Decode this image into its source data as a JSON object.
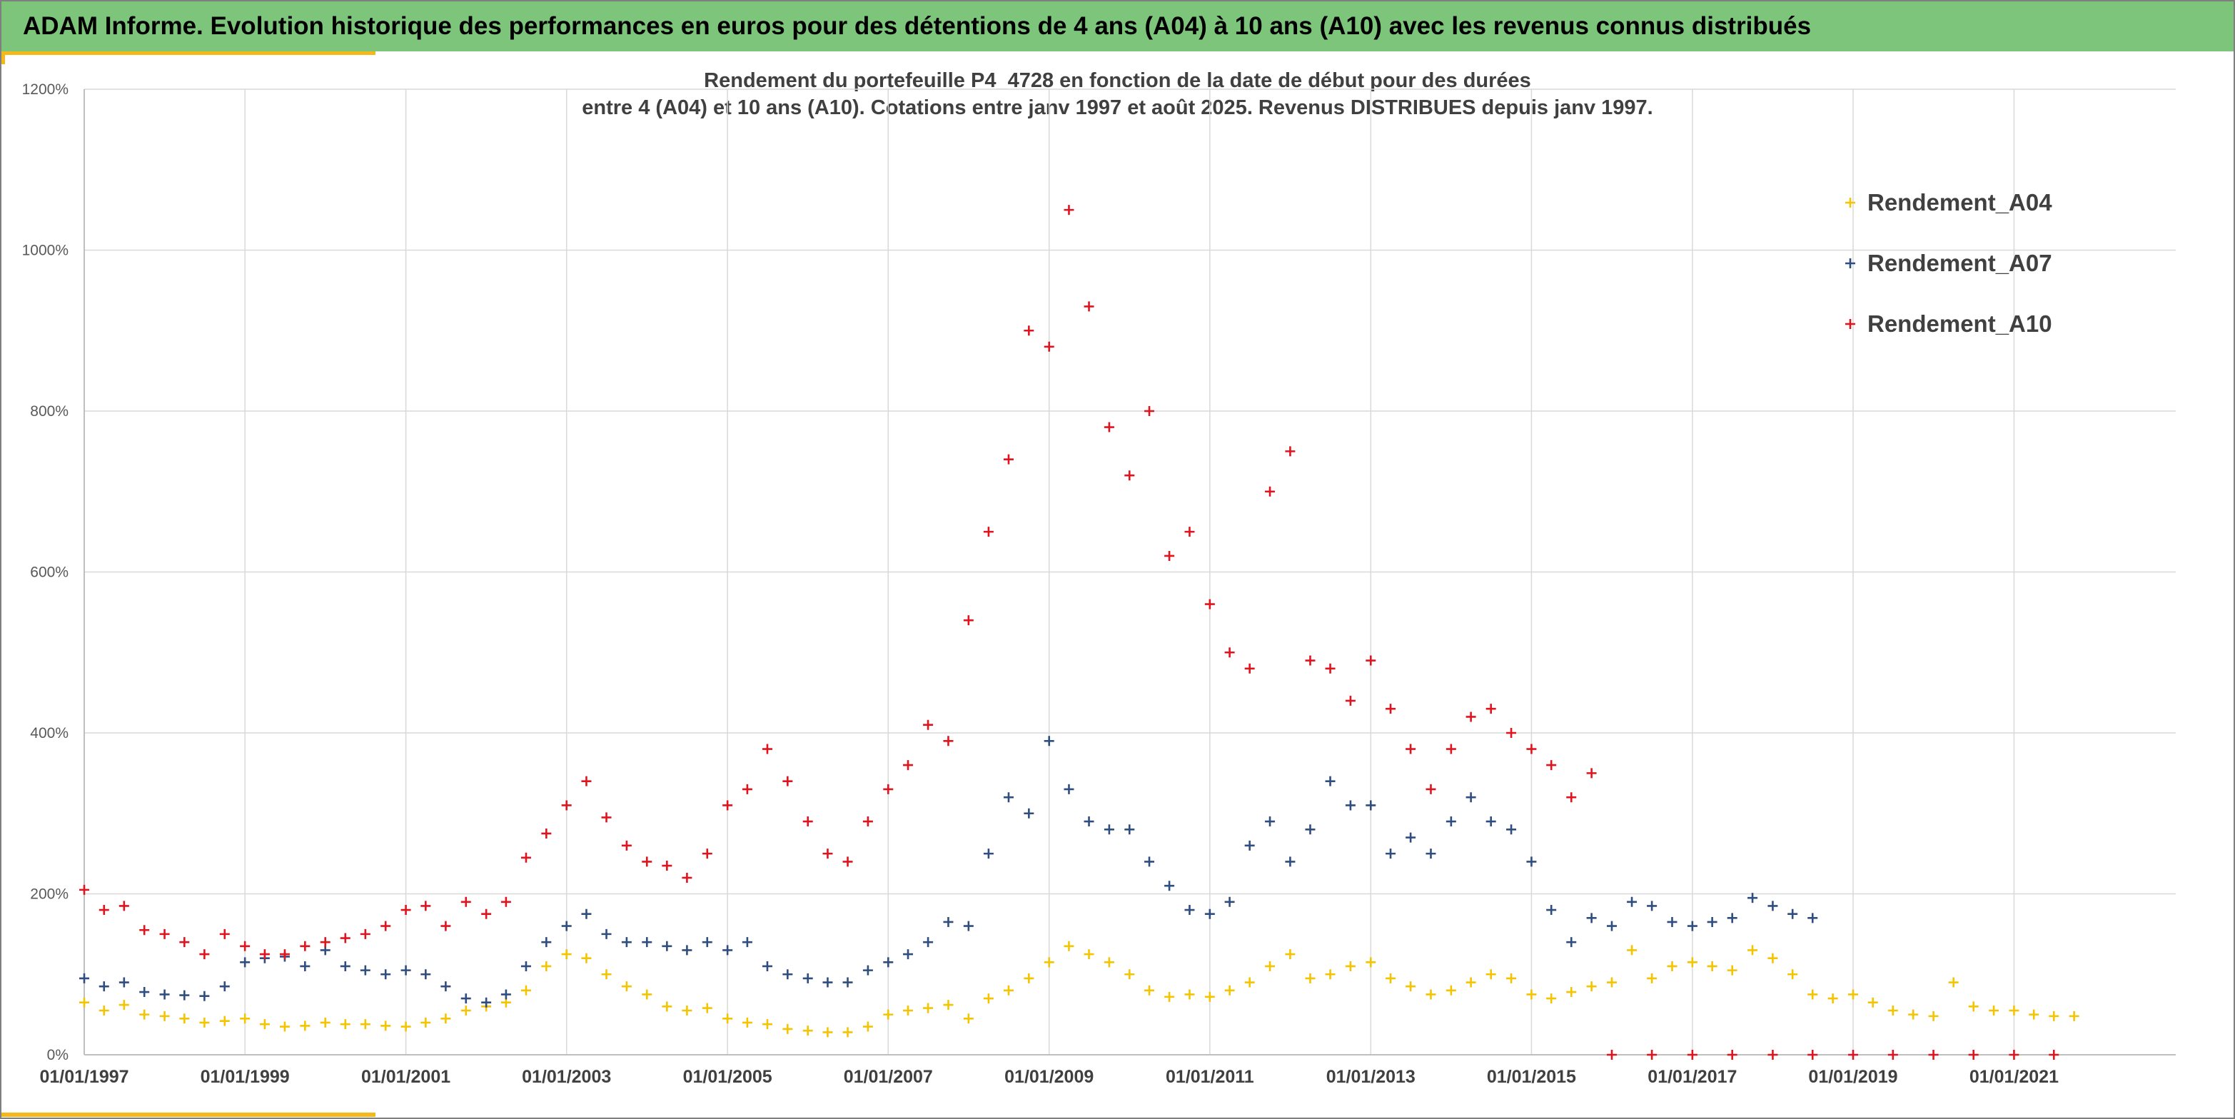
{
  "banner": {
    "title": "ADAM Informe. Evolution historique des performances en euros pour des détentions de 4 ans (A04) à 10 ans (A10) avec les revenus connus distribués"
  },
  "colors": {
    "banner": "#7dc57a",
    "accent": "#f4b81a",
    "a04": "#f5c400",
    "a07": "#2f4d7f",
    "a10": "#e0141e",
    "grid": "#d9d9d9"
  },
  "chart_data": {
    "type": "scatter",
    "title_line1": "Rendement du portefeuille P4_4728 en fonction de la date de début pour des durées",
    "title_line2": "entre 4 (A04) et 10 ans (A10). Cotations entre janv 1997 et août 2025. Revenus DISTRIBUES depuis janv 1997.",
    "marker": "+",
    "x_range": [
      "1997-01-01",
      "2022-01-01"
    ],
    "x_ticks": [
      "01/01/1997",
      "01/01/1999",
      "01/01/2001",
      "01/01/2003",
      "01/01/2005",
      "01/01/2007",
      "01/01/2009",
      "01/01/2011",
      "01/01/2013",
      "01/01/2015",
      "01/01/2017",
      "01/01/2019",
      "01/01/2021"
    ],
    "y_range": [
      0,
      1200
    ],
    "y_ticks": [
      "0%",
      "200%",
      "400%",
      "600%",
      "800%",
      "1000%",
      "1200%"
    ],
    "grid": true,
    "legend_position": "top-right",
    "series": [
      {
        "name": "Rendement_A04",
        "color": "#f5c400",
        "points": [
          [
            "1997-01-01",
            65
          ],
          [
            "1997-04-01",
            55
          ],
          [
            "1997-07-01",
            62
          ],
          [
            "1997-10-01",
            50
          ],
          [
            "1998-01-01",
            48
          ],
          [
            "1998-04-01",
            45
          ],
          [
            "1998-07-01",
            40
          ],
          [
            "1998-10-01",
            42
          ],
          [
            "1999-01-01",
            45
          ],
          [
            "1999-04-01",
            38
          ],
          [
            "1999-07-01",
            35
          ],
          [
            "1999-10-01",
            36
          ],
          [
            "2000-01-01",
            40
          ],
          [
            "2000-04-01",
            38
          ],
          [
            "2000-07-01",
            38
          ],
          [
            "2000-10-01",
            36
          ],
          [
            "2001-01-01",
            35
          ],
          [
            "2001-04-01",
            40
          ],
          [
            "2001-07-01",
            45
          ],
          [
            "2001-10-01",
            55
          ],
          [
            "2002-01-01",
            60
          ],
          [
            "2002-04-01",
            65
          ],
          [
            "2002-07-01",
            80
          ],
          [
            "2002-10-01",
            110
          ],
          [
            "2003-01-01",
            125
          ],
          [
            "2003-04-01",
            120
          ],
          [
            "2003-07-01",
            100
          ],
          [
            "2003-10-01",
            85
          ],
          [
            "2004-01-01",
            75
          ],
          [
            "2004-04-01",
            60
          ],
          [
            "2004-07-01",
            55
          ],
          [
            "2004-10-01",
            58
          ],
          [
            "2005-01-01",
            45
          ],
          [
            "2005-04-01",
            40
          ],
          [
            "2005-07-01",
            38
          ],
          [
            "2005-10-01",
            32
          ],
          [
            "2006-01-01",
            30
          ],
          [
            "2006-04-01",
            28
          ],
          [
            "2006-07-01",
            28
          ],
          [
            "2006-10-01",
            35
          ],
          [
            "2007-01-01",
            50
          ],
          [
            "2007-04-01",
            55
          ],
          [
            "2007-07-01",
            58
          ],
          [
            "2007-10-01",
            62
          ],
          [
            "2008-01-01",
            45
          ],
          [
            "2008-04-01",
            70
          ],
          [
            "2008-07-01",
            80
          ],
          [
            "2008-10-01",
            95
          ],
          [
            "2009-01-01",
            115
          ],
          [
            "2009-04-01",
            135
          ],
          [
            "2009-07-01",
            125
          ],
          [
            "2009-10-01",
            115
          ],
          [
            "2010-01-01",
            100
          ],
          [
            "2010-04-01",
            80
          ],
          [
            "2010-07-01",
            72
          ],
          [
            "2010-10-01",
            75
          ],
          [
            "2011-01-01",
            72
          ],
          [
            "2011-04-01",
            80
          ],
          [
            "2011-07-01",
            90
          ],
          [
            "2011-10-01",
            110
          ],
          [
            "2012-01-01",
            125
          ],
          [
            "2012-04-01",
            95
          ],
          [
            "2012-07-01",
            100
          ],
          [
            "2012-10-01",
            110
          ],
          [
            "2013-01-01",
            115
          ],
          [
            "2013-04-01",
            95
          ],
          [
            "2013-07-01",
            85
          ],
          [
            "2013-10-01",
            75
          ],
          [
            "2014-01-01",
            80
          ],
          [
            "2014-04-01",
            90
          ],
          [
            "2014-07-01",
            100
          ],
          [
            "2014-10-01",
            95
          ],
          [
            "2015-01-01",
            75
          ],
          [
            "2015-04-01",
            70
          ],
          [
            "2015-07-01",
            78
          ],
          [
            "2015-10-01",
            85
          ],
          [
            "2016-01-01",
            90
          ],
          [
            "2016-04-01",
            130
          ],
          [
            "2016-07-01",
            95
          ],
          [
            "2016-10-01",
            110
          ],
          [
            "2017-01-01",
            115
          ],
          [
            "2017-04-01",
            110
          ],
          [
            "2017-07-01",
            105
          ],
          [
            "2017-10-01",
            130
          ],
          [
            "2018-01-01",
            120
          ],
          [
            "2018-04-01",
            100
          ],
          [
            "2018-07-01",
            75
          ],
          [
            "2018-10-01",
            70
          ],
          [
            "2019-01-01",
            75
          ],
          [
            "2019-04-01",
            65
          ],
          [
            "2019-07-01",
            55
          ],
          [
            "2019-10-01",
            50
          ],
          [
            "2020-01-01",
            48
          ],
          [
            "2020-04-01",
            90
          ],
          [
            "2020-07-01",
            60
          ],
          [
            "2020-10-01",
            55
          ],
          [
            "2021-01-01",
            55
          ],
          [
            "2021-04-01",
            50
          ],
          [
            "2021-07-01",
            48
          ],
          [
            "2021-10-01",
            48
          ]
        ]
      },
      {
        "name": "Rendement_A07",
        "color": "#2f4d7f",
        "points": [
          [
            "1997-01-01",
            95
          ],
          [
            "1997-04-01",
            85
          ],
          [
            "1997-07-01",
            90
          ],
          [
            "1997-10-01",
            78
          ],
          [
            "1998-01-01",
            75
          ],
          [
            "1998-04-01",
            74
          ],
          [
            "1998-07-01",
            73
          ],
          [
            "1998-10-01",
            85
          ],
          [
            "1999-01-01",
            115
          ],
          [
            "1999-04-01",
            120
          ],
          [
            "1999-07-01",
            122
          ],
          [
            "1999-10-01",
            110
          ],
          [
            "2000-01-01",
            130
          ],
          [
            "2000-04-01",
            110
          ],
          [
            "2000-07-01",
            105
          ],
          [
            "2000-10-01",
            100
          ],
          [
            "2001-01-01",
            105
          ],
          [
            "2001-04-01",
            100
          ],
          [
            "2001-07-01",
            85
          ],
          [
            "2001-10-01",
            70
          ],
          [
            "2002-01-01",
            65
          ],
          [
            "2002-04-01",
            75
          ],
          [
            "2002-07-01",
            110
          ],
          [
            "2002-10-01",
            140
          ],
          [
            "2003-01-01",
            160
          ],
          [
            "2003-04-01",
            175
          ],
          [
            "2003-07-01",
            150
          ],
          [
            "2003-10-01",
            140
          ],
          [
            "2004-01-01",
            140
          ],
          [
            "2004-04-01",
            135
          ],
          [
            "2004-07-01",
            130
          ],
          [
            "2004-10-01",
            140
          ],
          [
            "2005-01-01",
            130
          ],
          [
            "2005-04-01",
            140
          ],
          [
            "2005-07-01",
            110
          ],
          [
            "2005-10-01",
            100
          ],
          [
            "2006-01-01",
            95
          ],
          [
            "2006-04-01",
            90
          ],
          [
            "2006-07-01",
            90
          ],
          [
            "2006-10-01",
            105
          ],
          [
            "2007-01-01",
            115
          ],
          [
            "2007-04-01",
            125
          ],
          [
            "2007-07-01",
            140
          ],
          [
            "2007-10-01",
            165
          ],
          [
            "2008-01-01",
            160
          ],
          [
            "2008-04-01",
            250
          ],
          [
            "2008-07-01",
            320
          ],
          [
            "2008-10-01",
            300
          ],
          [
            "2009-01-01",
            390
          ],
          [
            "2009-04-01",
            330
          ],
          [
            "2009-07-01",
            290
          ],
          [
            "2009-10-01",
            280
          ],
          [
            "2010-01-01",
            280
          ],
          [
            "2010-04-01",
            240
          ],
          [
            "2010-07-01",
            210
          ],
          [
            "2010-10-01",
            180
          ],
          [
            "2011-01-01",
            175
          ],
          [
            "2011-04-01",
            190
          ],
          [
            "2011-07-01",
            260
          ],
          [
            "2011-10-01",
            290
          ],
          [
            "2012-01-01",
            240
          ],
          [
            "2012-04-01",
            280
          ],
          [
            "2012-07-01",
            340
          ],
          [
            "2012-10-01",
            310
          ],
          [
            "2013-01-01",
            310
          ],
          [
            "2013-04-01",
            250
          ],
          [
            "2013-07-01",
            270
          ],
          [
            "2013-10-01",
            250
          ],
          [
            "2014-01-01",
            290
          ],
          [
            "2014-04-01",
            320
          ],
          [
            "2014-07-01",
            290
          ],
          [
            "2014-10-01",
            280
          ],
          [
            "2015-01-01",
            240
          ],
          [
            "2015-04-01",
            180
          ],
          [
            "2015-07-01",
            140
          ],
          [
            "2015-10-01",
            170
          ],
          [
            "2016-01-01",
            160
          ],
          [
            "2016-04-01",
            190
          ],
          [
            "2016-07-01",
            185
          ],
          [
            "2016-10-01",
            165
          ],
          [
            "2017-01-01",
            160
          ],
          [
            "2017-04-01",
            165
          ],
          [
            "2017-07-01",
            170
          ],
          [
            "2017-10-01",
            195
          ],
          [
            "2018-01-01",
            185
          ],
          [
            "2018-04-01",
            175
          ],
          [
            "2018-07-01",
            170
          ]
        ]
      },
      {
        "name": "Rendement_A10",
        "color": "#e0141e",
        "points": [
          [
            "1997-01-01",
            205
          ],
          [
            "1997-04-01",
            180
          ],
          [
            "1997-07-01",
            185
          ],
          [
            "1997-10-01",
            155
          ],
          [
            "1998-01-01",
            150
          ],
          [
            "1998-04-01",
            140
          ],
          [
            "1998-07-01",
            125
          ],
          [
            "1998-10-01",
            150
          ],
          [
            "1999-01-01",
            135
          ],
          [
            "1999-04-01",
            125
          ],
          [
            "1999-07-01",
            125
          ],
          [
            "1999-10-01",
            135
          ],
          [
            "2000-01-01",
            140
          ],
          [
            "2000-04-01",
            145
          ],
          [
            "2000-07-01",
            150
          ],
          [
            "2000-10-01",
            160
          ],
          [
            "2001-01-01",
            180
          ],
          [
            "2001-04-01",
            185
          ],
          [
            "2001-07-01",
            160
          ],
          [
            "2001-10-01",
            190
          ],
          [
            "2002-01-01",
            175
          ],
          [
            "2002-04-01",
            190
          ],
          [
            "2002-07-01",
            245
          ],
          [
            "2002-10-01",
            275
          ],
          [
            "2003-01-01",
            310
          ],
          [
            "2003-04-01",
            340
          ],
          [
            "2003-07-01",
            295
          ],
          [
            "2003-10-01",
            260
          ],
          [
            "2004-01-01",
            240
          ],
          [
            "2004-04-01",
            235
          ],
          [
            "2004-07-01",
            220
          ],
          [
            "2004-10-01",
            250
          ],
          [
            "2005-01-01",
            310
          ],
          [
            "2005-04-01",
            330
          ],
          [
            "2005-07-01",
            380
          ],
          [
            "2005-10-01",
            340
          ],
          [
            "2006-01-01",
            290
          ],
          [
            "2006-04-01",
            250
          ],
          [
            "2006-07-01",
            240
          ],
          [
            "2006-10-01",
            290
          ],
          [
            "2007-01-01",
            330
          ],
          [
            "2007-04-01",
            360
          ],
          [
            "2007-07-01",
            410
          ],
          [
            "2007-10-01",
            390
          ],
          [
            "2008-01-01",
            540
          ],
          [
            "2008-04-01",
            650
          ],
          [
            "2008-07-01",
            740
          ],
          [
            "2008-10-01",
            900
          ],
          [
            "2009-01-01",
            880
          ],
          [
            "2009-04-01",
            1050
          ],
          [
            "2009-07-01",
            930
          ],
          [
            "2009-10-01",
            780
          ],
          [
            "2010-01-01",
            720
          ],
          [
            "2010-04-01",
            800
          ],
          [
            "2010-07-01",
            620
          ],
          [
            "2010-10-01",
            650
          ],
          [
            "2011-01-01",
            560
          ],
          [
            "2011-04-01",
            500
          ],
          [
            "2011-07-01",
            480
          ],
          [
            "2011-10-01",
            700
          ],
          [
            "2012-01-01",
            750
          ],
          [
            "2012-04-01",
            490
          ],
          [
            "2012-07-01",
            480
          ],
          [
            "2012-10-01",
            440
          ],
          [
            "2013-01-01",
            490
          ],
          [
            "2013-04-01",
            430
          ],
          [
            "2013-07-01",
            380
          ],
          [
            "2013-10-01",
            330
          ],
          [
            "2014-01-01",
            380
          ],
          [
            "2014-04-01",
            420
          ],
          [
            "2014-07-01",
            430
          ],
          [
            "2014-10-01",
            400
          ],
          [
            "2015-01-01",
            380
          ],
          [
            "2015-04-01",
            360
          ],
          [
            "2015-07-01",
            320
          ],
          [
            "2015-10-01",
            350
          ],
          [
            "2016-01-01",
            0
          ],
          [
            "2016-07-01",
            0
          ],
          [
            "2017-01-01",
            0
          ],
          [
            "2017-07-01",
            0
          ],
          [
            "2018-01-01",
            0
          ],
          [
            "2018-07-01",
            0
          ],
          [
            "2019-01-01",
            0
          ],
          [
            "2019-07-01",
            0
          ],
          [
            "2020-01-01",
            0
          ],
          [
            "2020-07-01",
            0
          ],
          [
            "2021-01-01",
            0
          ],
          [
            "2021-07-01",
            0
          ]
        ]
      }
    ]
  }
}
